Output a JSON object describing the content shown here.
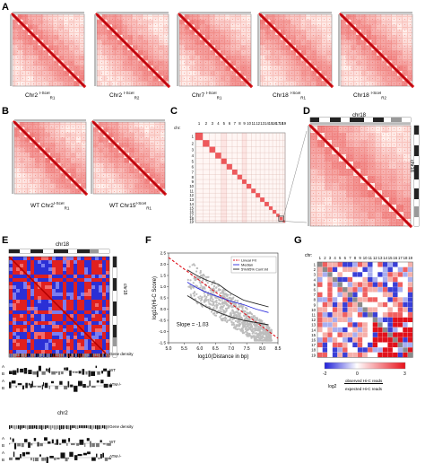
{
  "panels": {
    "A": {
      "label": "A",
      "maps": [
        {
          "chr": "Chr2 ",
          "sup": "I-SceI",
          "sub": "R1"
        },
        {
          "chr": "Chr2 ",
          "sup": "I-SceI",
          "sub": "R2"
        },
        {
          "chr": "Chr7 ",
          "sup": "I-SceI",
          "sub": "R1"
        },
        {
          "chr": "Chr18 ",
          "sup": "I-SceI",
          "sub": "R1"
        },
        {
          "chr": "Chr18 ",
          "sup": "I-SceI",
          "sub": "R2"
        }
      ]
    },
    "B": {
      "label": "B",
      "maps": [
        {
          "chr": "WT Chr2",
          "sup": "I-SceI",
          "sub": "R1"
        },
        {
          "chr": "WT Chr15",
          "sup": "I-SceI",
          "sub": "R1"
        }
      ]
    },
    "C": {
      "label": "C",
      "chr_prefix": "chr:",
      "chromosomes": [
        "1",
        "2",
        "3",
        "4",
        "5",
        "6",
        "7",
        "8",
        "9",
        "10",
        "11",
        "12",
        "13",
        "14",
        "15",
        "16",
        "17",
        "18",
        "19"
      ]
    },
    "D": {
      "label": "D",
      "title": "chr18",
      "side_label": "chr18"
    },
    "E": {
      "label": "E",
      "title": "chr18",
      "side_label": "chr18",
      "gene_density": "Gene density",
      "wt": "WT",
      "atm": "ATM-/-",
      "a": "A",
      "b": "B",
      "chr2_title": "chr2",
      "gene_density2": "Gene density"
    },
    "F": {
      "label": "F",
      "ylabel": "log10(Hi-C Score)",
      "xlabel": "log10(Distance in bp)",
      "slope_text": "Slope = -1.03",
      "legend": [
        "Linear Fit",
        "Median",
        "5%/95% Conf.Int"
      ]
    },
    "G": {
      "label": "G",
      "chr_prefix": "chr:",
      "colorbar_ticks": [
        "-2",
        "0",
        "3"
      ],
      "colorbar_label_prefix": "log2",
      "colorbar_num": "observed Hi-C reads",
      "colorbar_den": "expected Hi-C reads"
    }
  },
  "chart_data": {
    "type": "scatter",
    "title": "",
    "xlabel": "log10(Distance in bp)",
    "ylabel": "log10(Hi-C Score)",
    "xlim": [
      5.0,
      8.5
    ],
    "ylim": [
      -1.5,
      2.5
    ],
    "xticks": [
      "5.0",
      "5.5",
      "6.0",
      "6.5",
      "7.0",
      "7.5",
      "8.0",
      "8.5"
    ],
    "yticks": [
      "-1.5",
      "-1.0",
      "-0.5",
      "0.0",
      "0.5",
      "1.0",
      "1.5",
      "2.0",
      "2.5"
    ],
    "series": [
      {
        "name": "Linear Fit",
        "color": "#e0141e",
        "x": [
          5.0,
          8.5
        ],
        "y": [
          2.3,
          -1.3
        ]
      },
      {
        "name": "Median",
        "color": "#2a2adc",
        "x": [
          5.6,
          5.9,
          6.2,
          6.6,
          7.0,
          7.4,
          7.8,
          8.2
        ],
        "y": [
          1.2,
          0.95,
          0.75,
          0.55,
          0.35,
          0.2,
          0.0,
          -0.15
        ]
      },
      {
        "name": "5%/95% Conf.Int",
        "color": "#222222",
        "x": [
          5.6,
          5.9,
          6.2,
          6.6,
          7.0,
          7.4,
          7.8,
          8.2
        ],
        "y": [
          1.75,
          1.5,
          1.3,
          1.1,
          0.7,
          0.4,
          0.25,
          0.1
        ]
      },
      {
        "name": "5%/95% Conf.Int",
        "color": "#222222",
        "x": [
          5.6,
          5.9,
          6.2,
          6.6,
          7.0,
          7.4,
          7.8,
          8.2
        ],
        "y": [
          0.6,
          0.35,
          0.1,
          -0.15,
          -0.35,
          -0.5,
          -0.6,
          -0.7
        ]
      }
    ],
    "annotation": "Slope = -1.03",
    "legend_position": "top-right",
    "grid": false
  }
}
